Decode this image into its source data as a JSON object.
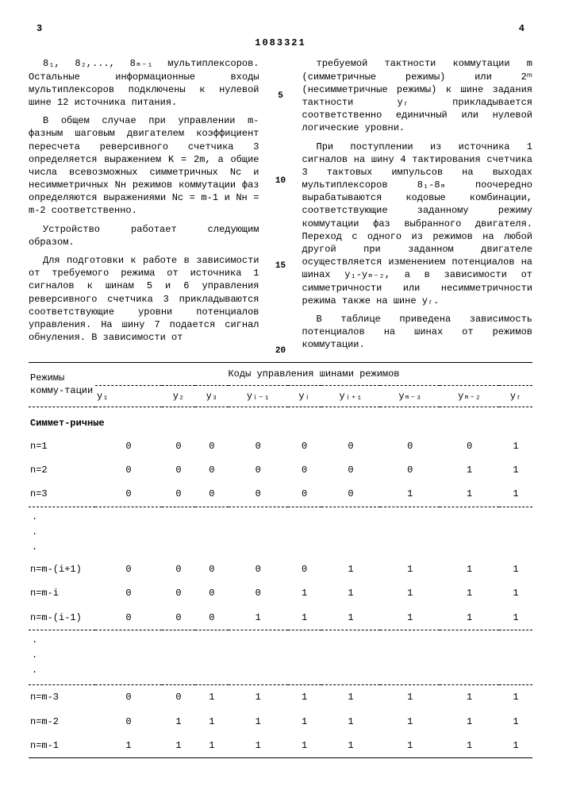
{
  "page_left": "3",
  "page_right": "4",
  "doc_id": "1083321",
  "left_paragraphs": [
    "8₁, 8₂,..., 8ₘ₋₁ мультиплексоров. Остальные информационные входы мультиплексоров подключены к нулевой шине 12 источника питания.",
    "В общем случае при управлении m-фазным шаговым двигателем коэффициент пересчета реверсивного счетчика 3 определяется выражением K = 2m, а общие числа всевозможных симметричных Nс и несимметричных Nн режимов коммутации фаз определяются выражениями Nс = m-1 и Nн = m-2 соответственно.",
    "Устройство работает следующим образом.",
    "Для подготовки к работе в зависимости от требуемого режима от источника 1 сигналов к шинам 5 и 6 управления реверсивного счетчика 3 прикладываются соответствующие уровни потенциалов управления. На шину 7 подается сигнал обнуления. В зависимости от"
  ],
  "right_paragraphs": [
    "требуемой тактности коммутации m (симметричные режимы) или 2ᵐ (несимметричные режимы) к шине задания тактности yᵣ прикладывается соответственно единичный или нулевой логические уровни.",
    "При поступлении из источника 1 сигналов на шину 4 тактирования счетчика 3 тактовых импульсов на выходах мультиплексоров 8₁-8ₘ поочередно вырабатываются кодовые комбинации, соответствующие заданному режиму коммутации фаз выбранного двигателя. Переход с одного из режимов на любой другой при заданном двигателе осуществляется изменением потенциалов на шинах y₁-yₘ₋₂, а в зависимости от симметричности или несимметричности режима также на шине yᵣ.",
    "В таблице приведена зависимость потенциалов на шинах от режимов коммутации."
  ],
  "line_nums": [
    "5",
    "10",
    "15",
    "20"
  ],
  "table": {
    "header_left": "Режимы комму-тации",
    "header_right": "Коды управления шинами режимов",
    "cols": [
      "y₁",
      "y₂",
      "y₃",
      "yᵢ₋₁",
      "yᵢ",
      "yᵢ₊₁",
      "yₘ₋₃",
      "yₘ₋₂",
      "yᵣ"
    ],
    "section1": "Симмет-ричные",
    "rows1": [
      {
        "label": "n=1",
        "v": [
          "0",
          "0",
          "0",
          "0",
          "0",
          "0",
          "0",
          "0",
          "1"
        ]
      },
      {
        "label": "n=2",
        "v": [
          "0",
          "0",
          "0",
          "0",
          "0",
          "0",
          "0",
          "1",
          "1"
        ]
      },
      {
        "label": "n=3",
        "v": [
          "0",
          "0",
          "0",
          "0",
          "0",
          "0",
          "1",
          "1",
          "1"
        ]
      }
    ],
    "rows2": [
      {
        "label": "n=m-(i+1)",
        "v": [
          "0",
          "0",
          "0",
          "0",
          "0",
          "1",
          "1",
          "1",
          "1"
        ]
      },
      {
        "label": "n=m-i",
        "v": [
          "0",
          "0",
          "0",
          "0",
          "1",
          "1",
          "1",
          "1",
          "1"
        ]
      },
      {
        "label": "n=m-(i-1)",
        "v": [
          "0",
          "0",
          "0",
          "1",
          "1",
          "1",
          "1",
          "1",
          "1"
        ]
      }
    ],
    "rows3": [
      {
        "label": "n=m-3",
        "v": [
          "0",
          "0",
          "1",
          "1",
          "1",
          "1",
          "1",
          "1",
          "1"
        ]
      },
      {
        "label": "n=m-2",
        "v": [
          "0",
          "1",
          "1",
          "1",
          "1",
          "1",
          "1",
          "1",
          "1"
        ]
      },
      {
        "label": "n=m-1",
        "v": [
          "1",
          "1",
          "1",
          "1",
          "1",
          "1",
          "1",
          "1",
          "1"
        ]
      }
    ]
  }
}
